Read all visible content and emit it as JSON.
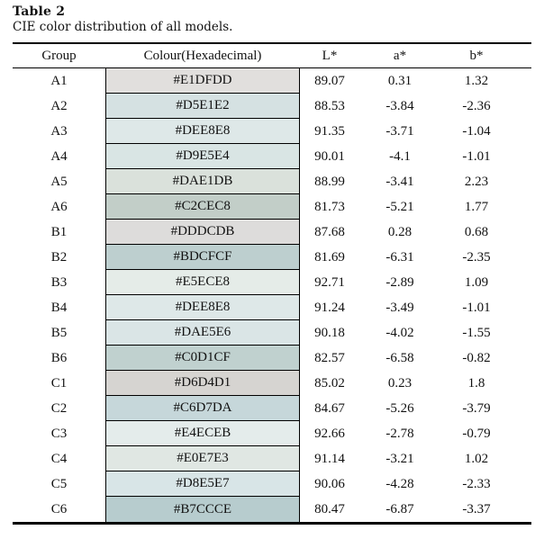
{
  "title": "Table 2",
  "caption": "CIE color distribution of all models.",
  "table": {
    "headers": [
      "Group",
      "Colour(Hexadecimal)",
      "L*",
      "a*",
      "b*"
    ],
    "rows": [
      {
        "group": "A1",
        "hex": "#E1DFDD",
        "L": "89.07",
        "a": "0.31",
        "b": "1.32"
      },
      {
        "group": "A2",
        "hex": "#D5E1E2",
        "L": "88.53",
        "a": "-3.84",
        "b": "-2.36"
      },
      {
        "group": "A3",
        "hex": "#DEE8E8",
        "L": "91.35",
        "a": "-3.71",
        "b": "-1.04"
      },
      {
        "group": "A4",
        "hex": "#D9E5E4",
        "L": "90.01",
        "a": "-4.1",
        "b": "-1.01"
      },
      {
        "group": "A5",
        "hex": "#DAE1DB",
        "L": "88.99",
        "a": "-3.41",
        "b": "2.23"
      },
      {
        "group": "A6",
        "hex": "#C2CEC8",
        "L": "81.73",
        "a": "-5.21",
        "b": "1.77"
      },
      {
        "group": "B1",
        "hex": "#DDDCDB",
        "L": "87.68",
        "a": "0.28",
        "b": "0.68"
      },
      {
        "group": "B2",
        "hex": "#BDCFCF",
        "L": "81.69",
        "a": "-6.31",
        "b": "-2.35"
      },
      {
        "group": "B3",
        "hex": "#E5ECE8",
        "L": "92.71",
        "a": "-2.89",
        "b": "1.09"
      },
      {
        "group": "B4",
        "hex": "#DEE8E8",
        "L": "91.24",
        "a": "-3.49",
        "b": "-1.01"
      },
      {
        "group": "B5",
        "hex": "#DAE5E6",
        "L": "90.18",
        "a": "-4.02",
        "b": "-1.55"
      },
      {
        "group": "B6",
        "hex": "#C0D1CF",
        "L": "82.57",
        "a": "-6.58",
        "b": "-0.82"
      },
      {
        "group": "C1",
        "hex": "#D6D4D1",
        "L": "85.02",
        "a": "0.23",
        "b": "1.8"
      },
      {
        "group": "C2",
        "hex": "#C6D7DA",
        "L": "84.67",
        "a": "-5.26",
        "b": "-3.79"
      },
      {
        "group": "C3",
        "hex": "#E4ECEB",
        "L": "92.66",
        "a": "-2.78",
        "b": "-0.79"
      },
      {
        "group": "C4",
        "hex": "#E0E7E3",
        "L": "91.14",
        "a": "-3.21",
        "b": "1.02"
      },
      {
        "group": "C5",
        "hex": "#D8E5E7",
        "L": "90.06",
        "a": "-4.28",
        "b": "-2.33"
      },
      {
        "group": "C6",
        "hex": "#B7CCCE",
        "L": "80.47",
        "a": "-6.87",
        "b": "-3.37"
      }
    ]
  },
  "colors": {
    "text": "#111111",
    "rule": "#000000",
    "background": "#ffffff"
  }
}
